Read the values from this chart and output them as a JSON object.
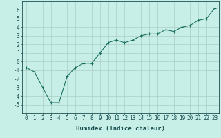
{
  "x": [
    0,
    1,
    2,
    3,
    4,
    5,
    6,
    7,
    8,
    9,
    10,
    11,
    12,
    13,
    14,
    15,
    16,
    17,
    18,
    19,
    20,
    21,
    22,
    23
  ],
  "y": [
    -0.7,
    -1.2,
    -3.0,
    -4.8,
    -4.8,
    -1.7,
    -0.7,
    -0.2,
    -0.2,
    1.0,
    2.2,
    2.5,
    2.2,
    2.5,
    3.0,
    3.2,
    3.2,
    3.7,
    3.5,
    4.0,
    4.2,
    4.8,
    5.0,
    6.2
  ],
  "line_color": "#1a7060",
  "marker_color": "#1a7060",
  "bg_color": "#c8eee8",
  "grid_color": "#aaccc4",
  "xlabel": "Humidex (Indice chaleur)",
  "xlim": [
    -0.5,
    23.5
  ],
  "ylim": [
    -6,
    7
  ],
  "yticks": [
    -5,
    -4,
    -3,
    -2,
    -1,
    0,
    1,
    2,
    3,
    4,
    5,
    6
  ],
  "xtick_labels": [
    "0",
    "1",
    "2",
    "3",
    "4",
    "5",
    "6",
    "7",
    "8",
    "9",
    "10",
    "11",
    "12",
    "13",
    "14",
    "15",
    "16",
    "17",
    "18",
    "19",
    "20",
    "21",
    "22",
    "23"
  ],
  "font_color": "#1a5050",
  "font_family": "monospace",
  "tick_fontsize": 5.5,
  "label_fontsize": 6.5
}
